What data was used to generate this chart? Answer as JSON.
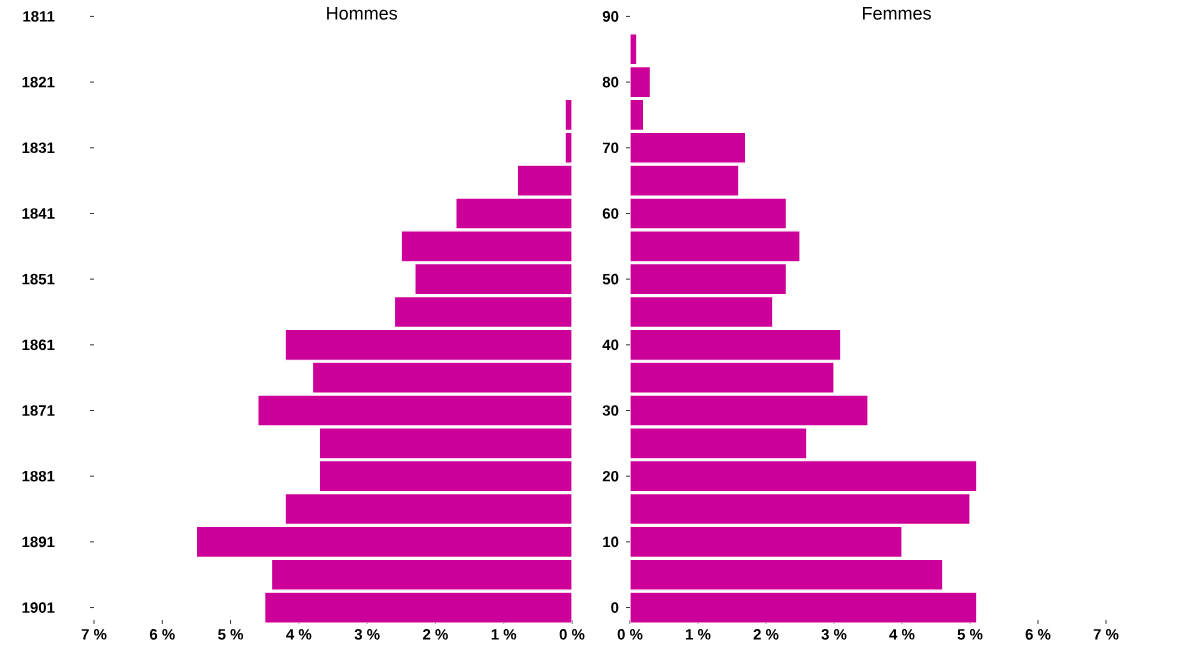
{
  "chart_data": [
    {
      "type": "bar",
      "orientation": "horizontal",
      "title": "Hommes",
      "color": "#cc0099",
      "categories": [
        "1811",
        null,
        "1821",
        null,
        "1831",
        null,
        "1841",
        null,
        "1851",
        null,
        "1861",
        null,
        "1871",
        null,
        "1881",
        null,
        "1891",
        null,
        "1901"
      ],
      "values": [
        null,
        null,
        null,
        0.1,
        0.1,
        0.8,
        1.7,
        2.5,
        2.3,
        2.6,
        4.2,
        3.8,
        4.6,
        3.7,
        3.7,
        4.2,
        5.5,
        4.4,
        4.5
      ],
      "xlim": [
        7,
        0
      ],
      "xticks": [
        {
          "value": 7,
          "label": "7 %"
        },
        {
          "value": 6,
          "label": "6 %"
        },
        {
          "value": 5,
          "label": "5 %"
        },
        {
          "value": 4,
          "label": "4 %"
        },
        {
          "value": 3,
          "label": "3 %"
        },
        {
          "value": 2,
          "label": "2 %"
        },
        {
          "value": 1,
          "label": "1 %"
        },
        {
          "value": 0,
          "label": "0 %"
        }
      ]
    },
    {
      "type": "bar",
      "orientation": "horizontal",
      "title": "Femmes",
      "color": "#cc0099",
      "categories": [
        "90",
        null,
        "80",
        null,
        "70",
        null,
        "60",
        null,
        "50",
        null,
        "40",
        null,
        "30",
        null,
        "20",
        null,
        "10",
        null,
        "0"
      ],
      "values": [
        null,
        0.1,
        0.3,
        0.2,
        1.7,
        1.6,
        2.3,
        2.5,
        2.3,
        2.1,
        3.1,
        3.0,
        3.5,
        2.6,
        5.1,
        5.0,
        4.0,
        4.6,
        5.1
      ],
      "xlim": [
        0,
        7
      ],
      "xticks": [
        {
          "value": 0,
          "label": "0 %"
        },
        {
          "value": 1,
          "label": "1 %"
        },
        {
          "value": 2,
          "label": "2 %"
        },
        {
          "value": 3,
          "label": "3 %"
        },
        {
          "value": 4,
          "label": "4 %"
        },
        {
          "value": 5,
          "label": "5 %"
        },
        {
          "value": 6,
          "label": "6 %"
        },
        {
          "value": 7,
          "label": "7 %"
        }
      ]
    }
  ]
}
